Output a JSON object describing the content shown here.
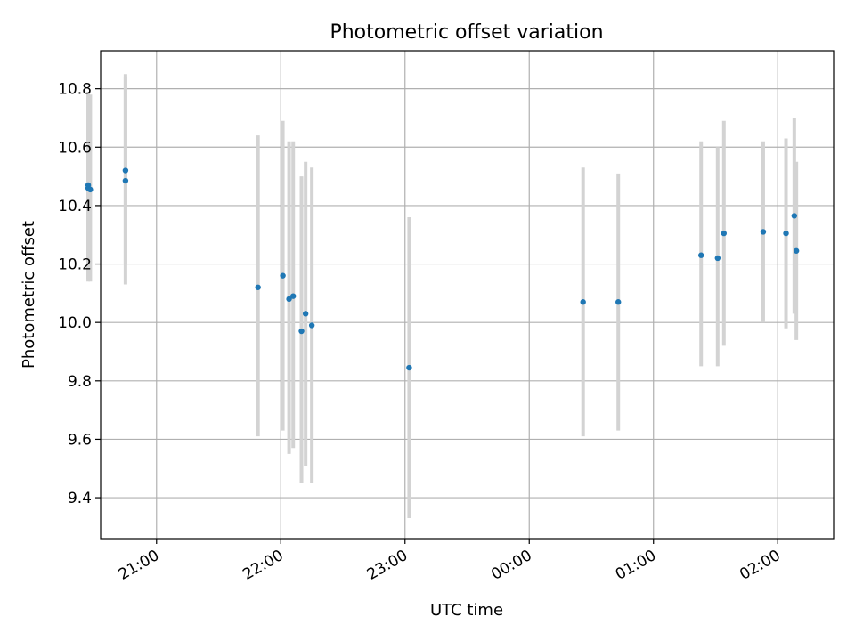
{
  "chart_data": {
    "type": "scatter",
    "title": "Photometric offset variation",
    "xlabel": "UTC time",
    "ylabel": "Photometric offset",
    "x_axis": {
      "type": "time",
      "range": [
        "20:33",
        "02:27"
      ],
      "ticks": [
        "21:00",
        "22:00",
        "23:00",
        "00:00",
        "01:00",
        "02:00"
      ]
    },
    "y_axis": {
      "range": [
        9.26,
        10.93
      ],
      "ticks": [
        "9.4",
        "9.6",
        "9.8",
        "10.0",
        "10.2",
        "10.4",
        "10.6",
        "10.8"
      ]
    },
    "grid": true,
    "colors": {
      "point": "#1f77b4",
      "errorbar": "#d3d3d3",
      "grid": "#b0b0b0"
    },
    "points": [
      {
        "x": "20:27",
        "y": 10.46,
        "ylow": 10.14,
        "yhigh": 10.77
      },
      {
        "x": "20:27",
        "y": 10.47,
        "ylow": 10.15,
        "yhigh": 10.79
      },
      {
        "x": "20:28",
        "y": 10.455,
        "ylow": 10.14,
        "yhigh": 10.78
      },
      {
        "x": "20:45",
        "y": 10.52,
        "ylow": 10.2,
        "yhigh": 10.85
      },
      {
        "x": "20:45",
        "y": 10.485,
        "ylow": 10.13,
        "yhigh": 10.84
      },
      {
        "x": "21:49",
        "y": 10.12,
        "ylow": 9.61,
        "yhigh": 10.64
      },
      {
        "x": "22:01",
        "y": 10.16,
        "ylow": 9.63,
        "yhigh": 10.69
      },
      {
        "x": "22:04",
        "y": 10.08,
        "ylow": 9.55,
        "yhigh": 10.62
      },
      {
        "x": "22:06",
        "y": 10.09,
        "ylow": 9.57,
        "yhigh": 10.62
      },
      {
        "x": "22:10",
        "y": 9.97,
        "ylow": 9.45,
        "yhigh": 10.5
      },
      {
        "x": "22:12",
        "y": 10.03,
        "ylow": 9.51,
        "yhigh": 10.55
      },
      {
        "x": "22:15",
        "y": 9.99,
        "ylow": 9.45,
        "yhigh": 10.53
      },
      {
        "x": "23:02",
        "y": 9.845,
        "ylow": 9.33,
        "yhigh": 10.36
      },
      {
        "x": "00:26",
        "y": 10.07,
        "ylow": 9.61,
        "yhigh": 10.53
      },
      {
        "x": "00:43",
        "y": 10.07,
        "ylow": 9.63,
        "yhigh": 10.51
      },
      {
        "x": "01:23",
        "y": 10.23,
        "ylow": 9.85,
        "yhigh": 10.62
      },
      {
        "x": "01:31",
        "y": 10.22,
        "ylow": 9.85,
        "yhigh": 10.6
      },
      {
        "x": "01:34",
        "y": 10.305,
        "ylow": 9.92,
        "yhigh": 10.69
      },
      {
        "x": "01:53",
        "y": 10.31,
        "ylow": 10.0,
        "yhigh": 10.62
      },
      {
        "x": "02:04",
        "y": 10.305,
        "ylow": 9.98,
        "yhigh": 10.63
      },
      {
        "x": "02:08",
        "y": 10.365,
        "ylow": 10.03,
        "yhigh": 10.7
      },
      {
        "x": "02:09",
        "y": 10.245,
        "ylow": 9.94,
        "yhigh": 10.55
      }
    ]
  }
}
